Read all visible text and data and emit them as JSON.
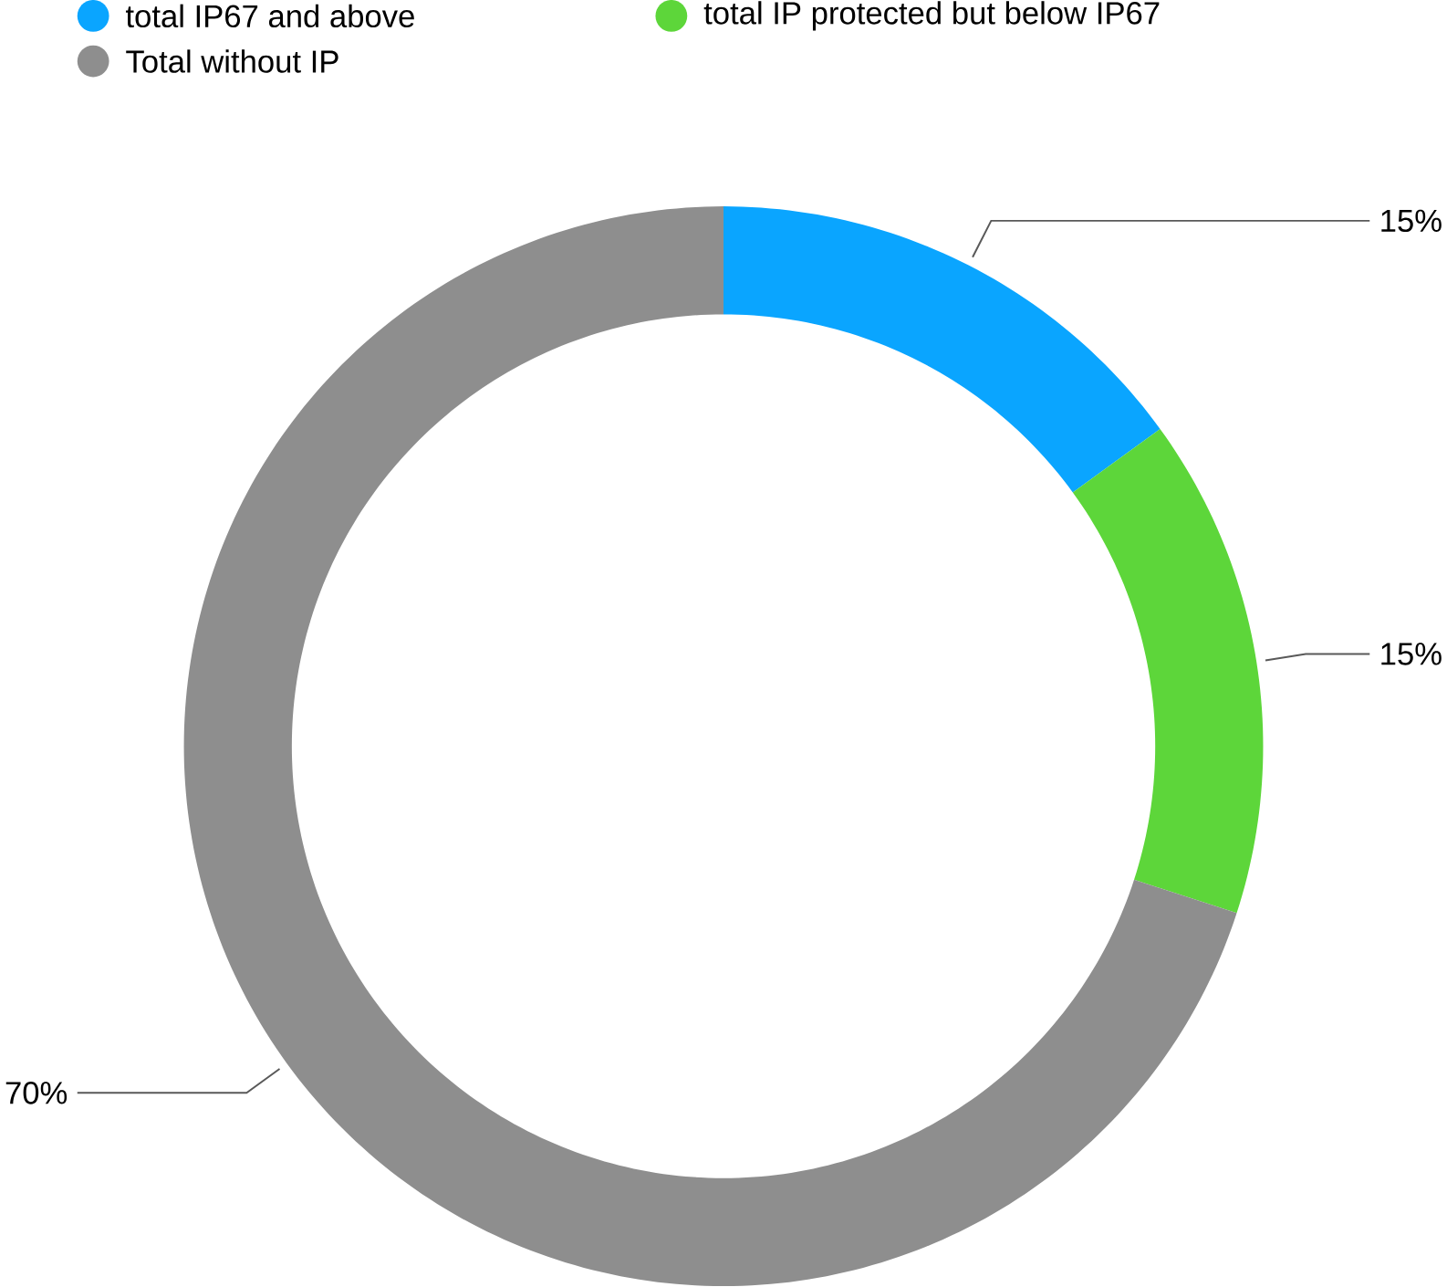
{
  "chart_data": {
    "type": "donut",
    "categories": [
      "total IP67 and above",
      "total IP protected but below IP67",
      "Total without IP"
    ],
    "values": [
      15,
      15,
      70
    ],
    "colors": [
      "#0aa5ff",
      "#5dd63a",
      "#8e8e8e"
    ],
    "value_labels": [
      "15%",
      "15%",
      "70%"
    ],
    "legend": "top left"
  }
}
